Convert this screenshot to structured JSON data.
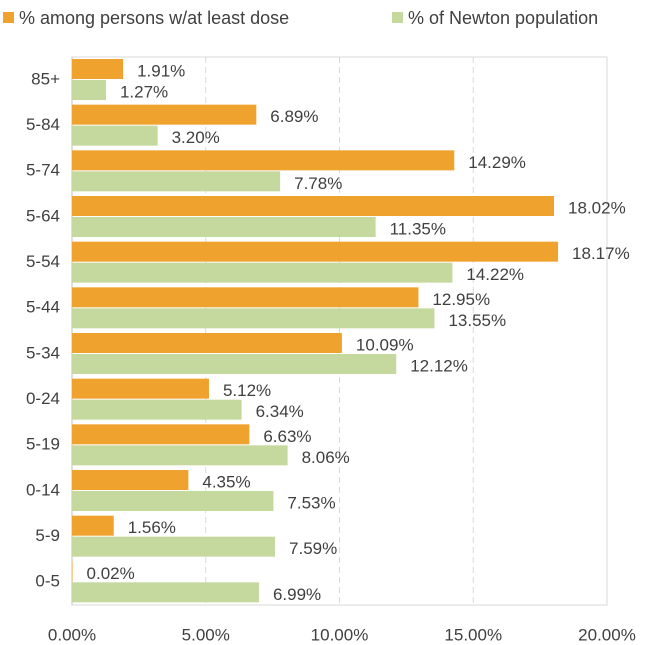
{
  "chart_data": {
    "type": "bar",
    "orientation": "horizontal",
    "categories": [
      "85+",
      "5-84",
      "5-74",
      "5-64",
      "5-54",
      "5-44",
      "5-34",
      "0-24",
      "5-19",
      "0-14",
      "5-9",
      "0-5"
    ],
    "series": [
      {
        "name": "% among persons w/at least dose",
        "color": "#f0a22e",
        "values": [
          1.91,
          6.89,
          14.29,
          18.02,
          18.17,
          12.95,
          10.09,
          5.12,
          6.63,
          4.35,
          1.56,
          0.02
        ],
        "value_labels": [
          "1.91%",
          "6.89%",
          "14.29%",
          "18.02%",
          "18.17%",
          "12.95%",
          "10.09%",
          "5.12%",
          "6.63%",
          "4.35%",
          "1.56%",
          "0.02%"
        ]
      },
      {
        "name": "% of Newton population",
        "color": "#c5d89d",
        "values": [
          1.27,
          3.2,
          7.78,
          11.35,
          14.22,
          13.55,
          12.12,
          6.34,
          8.06,
          7.53,
          7.59,
          6.99
        ],
        "value_labels": [
          "1.27%",
          "3.20%",
          "7.78%",
          "11.35%",
          "14.22%",
          "13.55%",
          "12.12%",
          "6.34%",
          "8.06%",
          "7.53%",
          "7.59%",
          "6.99%"
        ]
      }
    ],
    "xlim": [
      0,
      20
    ],
    "xticks": [
      {
        "value": 0,
        "label": "0.00%"
      },
      {
        "value": 5,
        "label": "5.00%"
      },
      {
        "value": 10,
        "label": "10.00%"
      },
      {
        "value": 15,
        "label": "15.00%"
      },
      {
        "value": 20,
        "label": "20.00%"
      }
    ],
    "grid": true,
    "legend": "top"
  }
}
